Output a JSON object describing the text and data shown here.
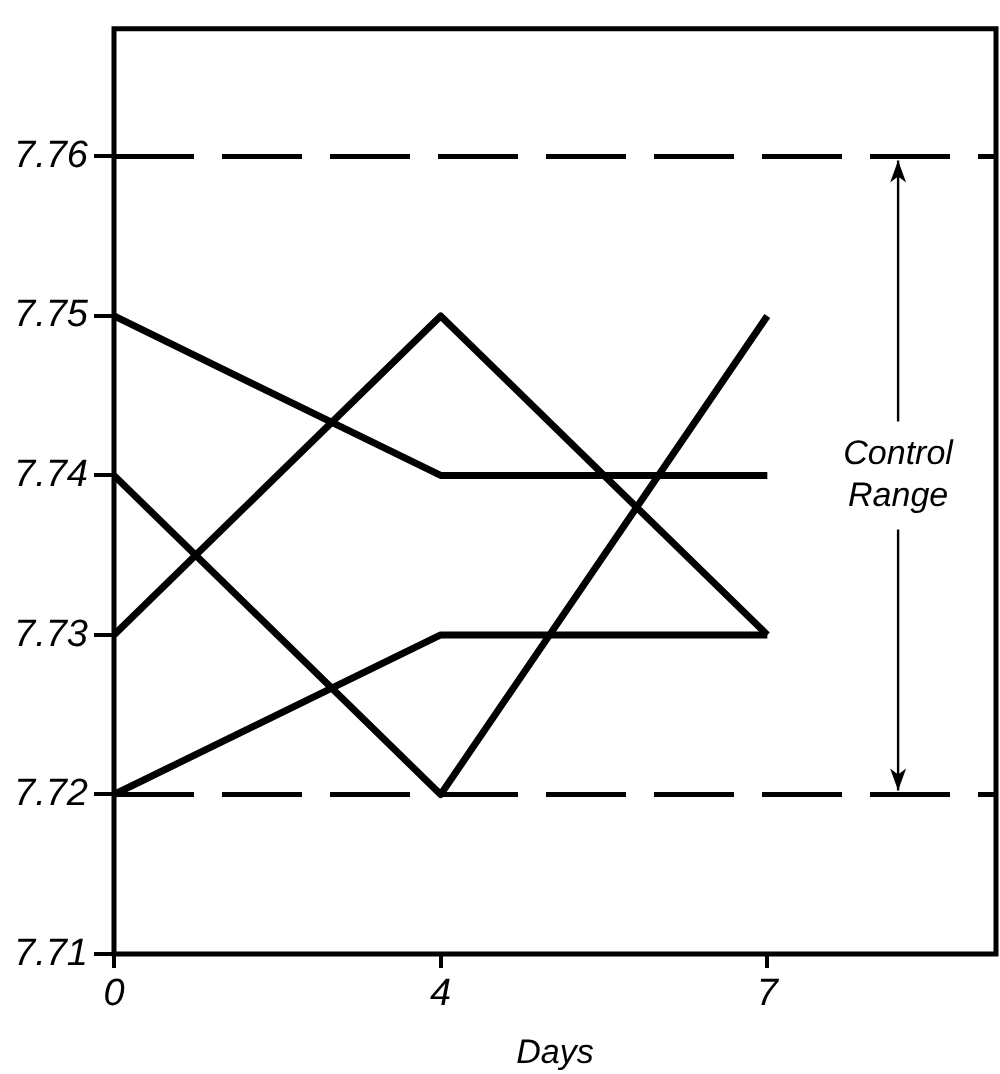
{
  "chart_data": {
    "type": "line",
    "categories": [
      "0",
      "4",
      "7"
    ],
    "xlabel": "Days",
    "series": [
      {
        "color": "#000000",
        "values": [
          7.75,
          7.74,
          7.74
        ]
      },
      {
        "color": "#000000",
        "values": [
          7.74,
          7.72,
          7.75
        ]
      },
      {
        "color": "#000000",
        "values": [
          7.73,
          7.75,
          7.73
        ]
      },
      {
        "color": "#000000",
        "values": [
          7.72,
          7.73,
          7.73
        ]
      }
    ],
    "ylim": [
      7.71,
      7.768
    ],
    "yticks": [
      7.71,
      7.72,
      7.73,
      7.74,
      7.75,
      7.76
    ],
    "ref_lines": [
      {
        "axis": "y",
        "value": 7.76,
        "color": "#000000",
        "line_style": "dashed"
      },
      {
        "axis": "y",
        "value": 7.72,
        "color": "#000000",
        "line_style": "dashed"
      }
    ],
    "annotations": [
      {
        "text": "Control Range",
        "y": 7.76
      }
    ],
    "legend": false,
    "grid": false,
    "marker": "none",
    "line_style": "solid"
  }
}
